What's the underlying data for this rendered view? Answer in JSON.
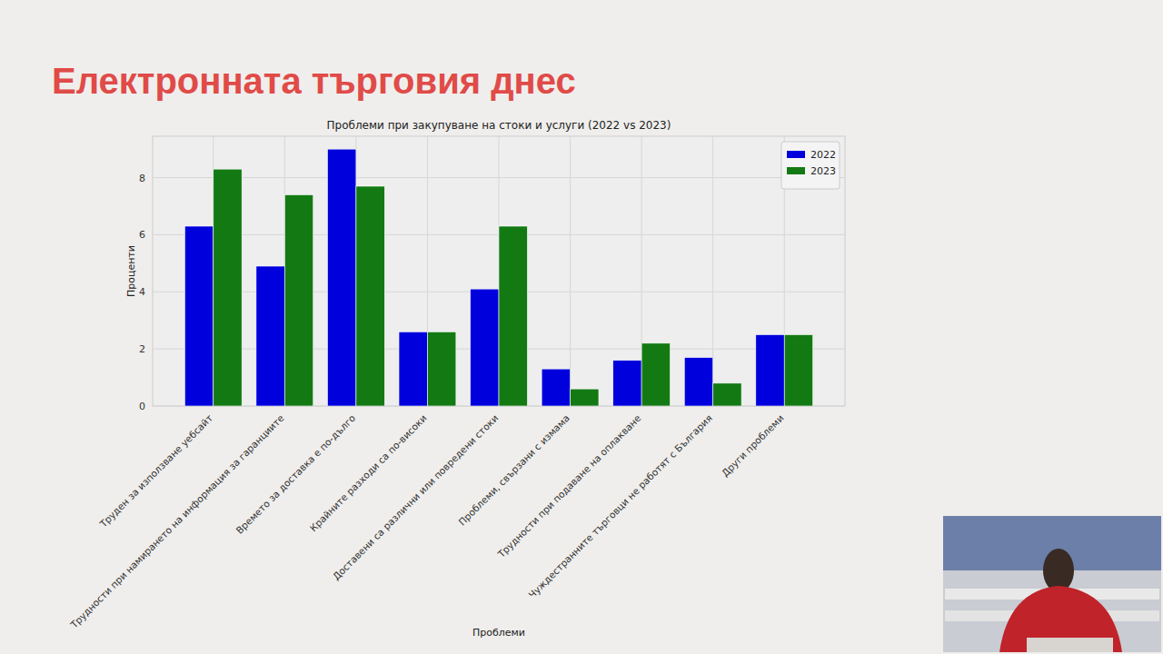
{
  "slide": {
    "title": "Електронната търговия днес"
  },
  "chart_data": {
    "type": "bar",
    "title": "Проблеми при закупуване на стоки и услуги (2022 vs 2023)",
    "x_label": "Проблеми",
    "y_label": "Проценти",
    "categories": [
      "Труден за използване уебсайт",
      "Трудности при намирането на информация за гаранциите",
      "Времето за доставка е по-дълго",
      "Крайните разходи са по-високи",
      "Доставени са различни или повредени стоки",
      "Проблеми, свързани с измама",
      "Трудности при подаване на оплакване",
      "Чуждестранните търговци не работят с България",
      "Други проблеми"
    ],
    "series": [
      {
        "name": "2022",
        "color": "#0000dd",
        "values": [
          6.3,
          4.9,
          9.0,
          2.6,
          4.1,
          1.3,
          1.6,
          1.7,
          2.5
        ]
      },
      {
        "name": "2023",
        "color": "#137a13",
        "values": [
          8.3,
          7.4,
          7.7,
          2.6,
          6.3,
          0.6,
          2.2,
          0.8,
          2.5
        ]
      }
    ],
    "ylim": [
      0,
      9.45
    ],
    "yticks": [
      0,
      2,
      4,
      6,
      8
    ],
    "grid": true,
    "legend": "upper right"
  }
}
